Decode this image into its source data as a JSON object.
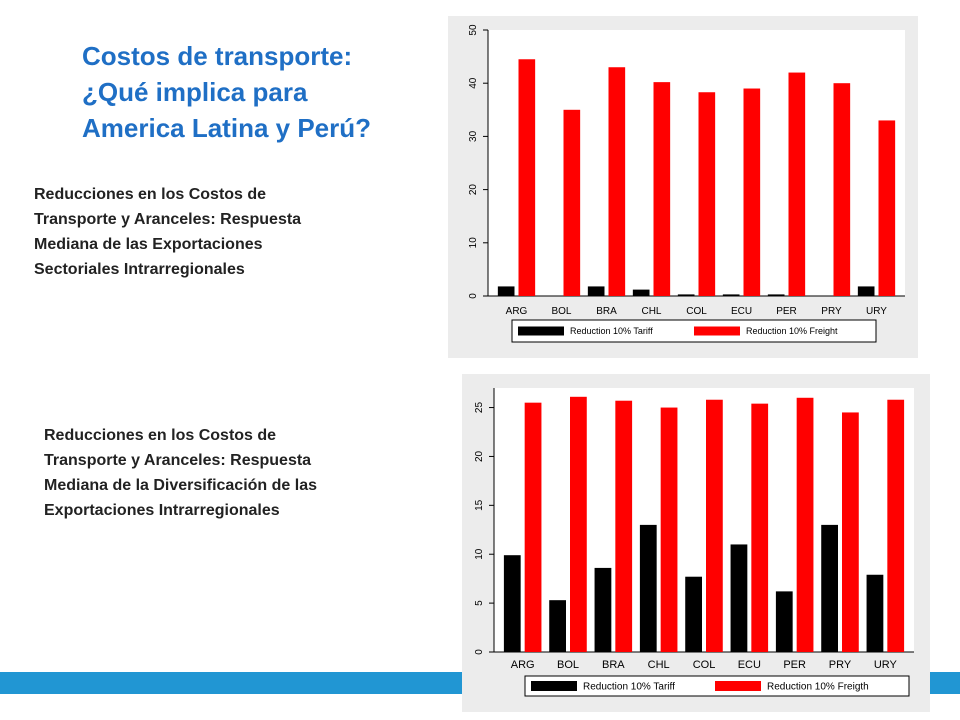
{
  "slide": {
    "title_lines": [
      "Costos de transporte:",
      "¿Qué implica para",
      "America Latina y Perú?"
    ],
    "desc1_lines": [
      "Reducciones en los Costos de",
      "Transporte y Aranceles: Respuesta",
      "Mediana de las Exportaciones",
      "Sectoriales Intrarregionales"
    ],
    "desc2_lines": [
      "Reducciones en los Costos de",
      "Transporte y Aranceles: Respuesta",
      "Mediana de la Diversificación de las",
      "Exportaciones Intrarregionales"
    ],
    "accent_color": "#1f6fc5",
    "bar_color": "#2196d3"
  },
  "chart_data": [
    {
      "type": "bar",
      "categories": [
        "ARG",
        "BOL",
        "BRA",
        "CHL",
        "COL",
        "ECU",
        "PER",
        "PRY",
        "URY"
      ],
      "series": [
        {
          "name": "Reduction 10% Tariff",
          "color": "#000000",
          "values": [
            1.8,
            0,
            1.8,
            1.2,
            0.3,
            0.3,
            0.3,
            0,
            1.8
          ]
        },
        {
          "name": "Reduction 10% Freight",
          "color": "#ff0000",
          "values": [
            44.5,
            35,
            43,
            40.2,
            38.3,
            39,
            42,
            40,
            33
          ]
        }
      ],
      "yticks": [
        0,
        10,
        20,
        30,
        40,
        50
      ],
      "ylim": [
        0,
        50
      ],
      "legend_position": "bottom",
      "grid": false
    },
    {
      "type": "bar",
      "categories": [
        "ARG",
        "BOL",
        "BRA",
        "CHL",
        "COL",
        "ECU",
        "PER",
        "PRY",
        "URY"
      ],
      "series": [
        {
          "name": "Reduction 10% Tariff",
          "color": "#000000",
          "values": [
            9.9,
            5.3,
            8.6,
            13,
            7.7,
            11,
            6.2,
            13,
            7.9
          ]
        },
        {
          "name": "Reduction 10% Freigth",
          "color": "#ff0000",
          "values": [
            25.5,
            26.1,
            25.7,
            25,
            25.8,
            25.4,
            26,
            24.5,
            25.8
          ]
        }
      ],
      "yticks": [
        0,
        5,
        10,
        15,
        20,
        25
      ],
      "ylim": [
        0,
        27
      ],
      "legend_position": "bottom",
      "grid": false
    }
  ]
}
